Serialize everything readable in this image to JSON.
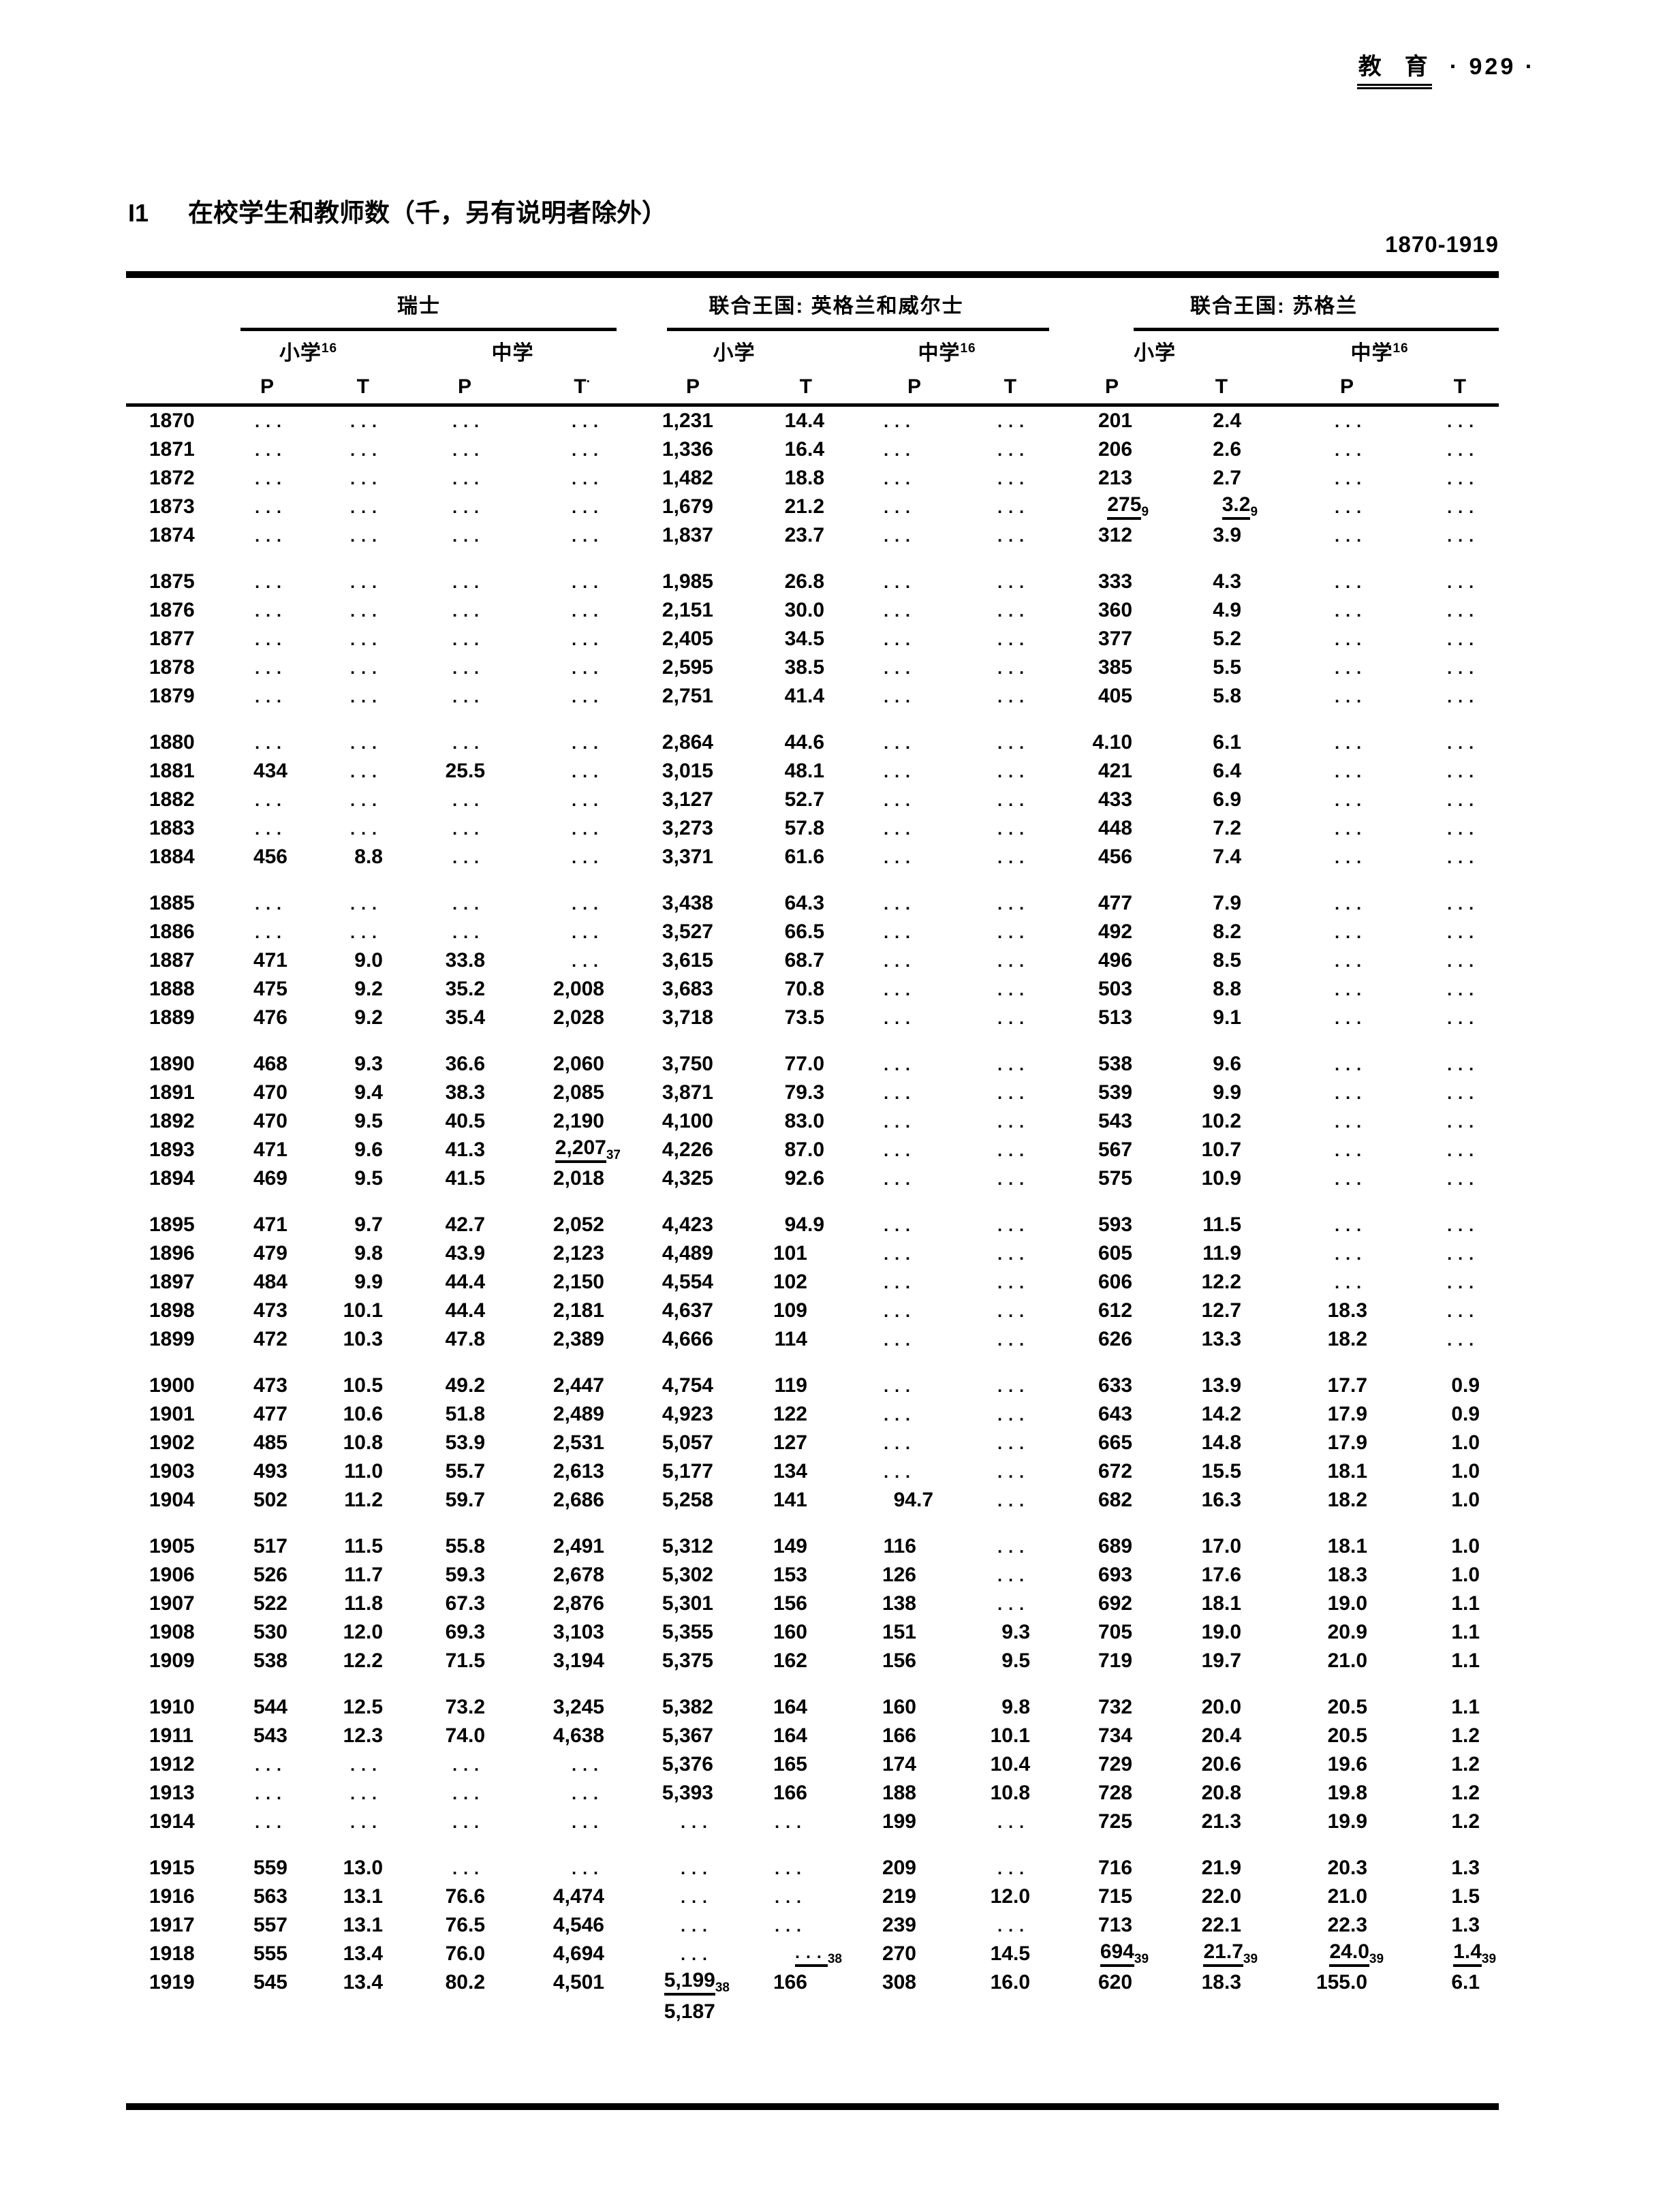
{
  "document": {
    "category": "教　育",
    "page_number": "· 929 ·",
    "table_id": "I1",
    "title": "在校学生和教师数（千，另有说明者除外）",
    "period": "1870-1919"
  },
  "table": {
    "groups": [
      {
        "label": "瑞士"
      },
      {
        "label": "联合王国: 英格兰和威尔士"
      },
      {
        "label": "联合王国: 苏格兰"
      }
    ],
    "subheaders": [
      {
        "label": "小学",
        "sup": "16"
      },
      {
        "label": "中学",
        "sup": ""
      },
      {
        "label": "小学",
        "sup": ""
      },
      {
        "label": "中学",
        "sup": "16"
      },
      {
        "label": "小学",
        "sup": ""
      },
      {
        "label": "中学",
        "sup": "16"
      }
    ],
    "pt_headers": [
      {
        "label": "P",
        "sup": ""
      },
      {
        "label": "T",
        "sup": ""
      },
      {
        "label": "P",
        "sup": ""
      },
      {
        "label": "T",
        "sup": "·"
      },
      {
        "label": "P",
        "sup": ""
      },
      {
        "label": "T",
        "sup": ""
      },
      {
        "label": "P",
        "sup": ""
      },
      {
        "label": "T",
        "sup": ""
      },
      {
        "label": "P",
        "sup": ""
      },
      {
        "label": "T",
        "sup": ""
      },
      {
        "label": "P",
        "sup": ""
      },
      {
        "label": "T",
        "sup": ""
      }
    ],
    "blocks": [
      [
        {
          "year": "1870",
          "cells": [
            "...",
            "...",
            "...",
            "...",
            "1,231",
            "14.4",
            "...",
            "...",
            "201",
            "2.4",
            "...",
            "..."
          ]
        },
        {
          "year": "1871",
          "cells": [
            "...",
            "...",
            "...",
            "...",
            "1,336",
            "16.4",
            "...",
            "...",
            "206",
            "2.6",
            "...",
            "..."
          ]
        },
        {
          "year": "1872",
          "cells": [
            "...",
            "...",
            "...",
            "...",
            "1,482",
            "18.8",
            "...",
            "...",
            "213",
            "2.7",
            "...",
            "..."
          ]
        },
        {
          "year": "1873",
          "cells": [
            "...",
            "...",
            "...",
            "...",
            "1,679",
            "21.2",
            "...",
            "...",
            {
              "v": "275",
              "sub": "9",
              "u": true
            },
            {
              "v": "3.2",
              "sub": "9",
              "u": true
            },
            "...",
            "..."
          ]
        },
        {
          "year": "1874",
          "cells": [
            "...",
            "...",
            "...",
            "...",
            "1,837",
            "23.7",
            "...",
            "...",
            "312",
            "3.9",
            "...",
            "..."
          ]
        }
      ],
      [
        {
          "year": "1875",
          "cells": [
            "...",
            "...",
            "...",
            "...",
            "1,985",
            "26.8",
            "...",
            "...",
            "333",
            "4.3",
            "...",
            "..."
          ]
        },
        {
          "year": "1876",
          "cells": [
            "...",
            "...",
            "...",
            "...",
            "2,151",
            "30.0",
            "...",
            "...",
            "360",
            "4.9",
            "...",
            "..."
          ]
        },
        {
          "year": "1877",
          "cells": [
            "...",
            "...",
            "...",
            "...",
            "2,405",
            "34.5",
            "...",
            "...",
            "377",
            "5.2",
            "...",
            "..."
          ]
        },
        {
          "year": "1878",
          "cells": [
            "...",
            "...",
            "...",
            "...",
            "2,595",
            "38.5",
            "...",
            "...",
            "385",
            "5.5",
            "...",
            "..."
          ]
        },
        {
          "year": "1879",
          "cells": [
            "...",
            "...",
            "...",
            "...",
            "2,751",
            "41.4",
            "...",
            "...",
            "405",
            "5.8",
            "...",
            "..."
          ]
        }
      ],
      [
        {
          "year": "1880",
          "cells": [
            "...",
            "...",
            "...",
            "...",
            "2,864",
            "44.6",
            "...",
            "...",
            "4.10",
            "6.1",
            "...",
            "..."
          ]
        },
        {
          "year": "1881",
          "cells": [
            "434",
            "...",
            "25.5",
            "...",
            "3,015",
            "48.1",
            "...",
            "...",
            "421",
            "6.4",
            "...",
            "..."
          ]
        },
        {
          "year": "1882",
          "cells": [
            "...",
            "...",
            "...",
            "...",
            "3,127",
            "52.7",
            "...",
            "...",
            "433",
            "6.9",
            "...",
            "..."
          ]
        },
        {
          "year": "1883",
          "cells": [
            "...",
            "...",
            "...",
            "...",
            "3,273",
            "57.8",
            "...",
            "...",
            "448",
            "7.2",
            "...",
            "..."
          ]
        },
        {
          "year": "1884",
          "cells": [
            "456",
            "8.8",
            "...",
            "...",
            "3,371",
            "61.6",
            "...",
            "...",
            "456",
            "7.4",
            "...",
            "..."
          ]
        }
      ],
      [
        {
          "year": "1885",
          "cells": [
            "...",
            "...",
            "...",
            "...",
            "3,438",
            "64.3",
            "...",
            "...",
            "477",
            "7.9",
            "...",
            "..."
          ]
        },
        {
          "year": "1886",
          "cells": [
            "...",
            "...",
            "...",
            "...",
            "3,527",
            "66.5",
            "...",
            "...",
            "492",
            "8.2",
            "...",
            "..."
          ]
        },
        {
          "year": "1887",
          "cells": [
            "471",
            "9.0",
            "33.8",
            "...",
            "3,615",
            "68.7",
            "...",
            "...",
            "496",
            "8.5",
            "...",
            "..."
          ]
        },
        {
          "year": "1888",
          "cells": [
            "475",
            "9.2",
            "35.2",
            "2,008",
            "3,683",
            "70.8",
            "...",
            "...",
            "503",
            "8.8",
            "...",
            "..."
          ]
        },
        {
          "year": "1889",
          "cells": [
            "476",
            "9.2",
            "35.4",
            "2,028",
            "3,718",
            "73.5",
            "...",
            "...",
            "513",
            "9.1",
            "...",
            "..."
          ]
        }
      ],
      [
        {
          "year": "1890",
          "cells": [
            "468",
            "9.3",
            "36.6",
            "2,060",
            "3,750",
            "77.0",
            "...",
            "...",
            "538",
            "9.6",
            "...",
            "..."
          ]
        },
        {
          "year": "1891",
          "cells": [
            "470",
            "9.4",
            "38.3",
            "2,085",
            "3,871",
            "79.3",
            "...",
            "...",
            "539",
            "9.9",
            "...",
            "..."
          ]
        },
        {
          "year": "1892",
          "cells": [
            "470",
            "9.5",
            "40.5",
            "2,190",
            "4,100",
            "83.0",
            "...",
            "...",
            "543",
            "10.2",
            "...",
            "..."
          ]
        },
        {
          "year": "1893",
          "cells": [
            "471",
            "9.6",
            "41.3",
            {
              "v": "2,207",
              "sub": "37",
              "u": true
            },
            "4,226",
            "87.0",
            "...",
            "...",
            "567",
            "10.7",
            "...",
            "..."
          ]
        },
        {
          "year": "1894",
          "cells": [
            "469",
            "9.5",
            "41.5",
            "2,018",
            "4,325",
            "92.6",
            "...",
            "...",
            "575",
            "10.9",
            "...",
            "..."
          ]
        }
      ],
      [
        {
          "year": "1895",
          "cells": [
            "471",
            "9.7",
            "42.7",
            "2,052",
            "4,423",
            "94.9",
            "...",
            "...",
            "593",
            "11.5",
            "...",
            "..."
          ]
        },
        {
          "year": "1896",
          "cells": [
            "479",
            "9.8",
            "43.9",
            "2,123",
            "4,489",
            "101",
            "...",
            "...",
            "605",
            "11.9",
            "...",
            "..."
          ]
        },
        {
          "year": "1897",
          "cells": [
            "484",
            "9.9",
            "44.4",
            "2,150",
            "4,554",
            "102",
            "...",
            "...",
            "606",
            "12.2",
            "...",
            "..."
          ]
        },
        {
          "year": "1898",
          "cells": [
            "473",
            "10.1",
            "44.4",
            "2,181",
            "4,637",
            "109",
            "...",
            "...",
            "612",
            "12.7",
            "18.3",
            "..."
          ]
        },
        {
          "year": "1899",
          "cells": [
            "472",
            "10.3",
            "47.8",
            "2,389",
            "4,666",
            "114",
            "...",
            "...",
            "626",
            "13.3",
            "18.2",
            "..."
          ]
        }
      ],
      [
        {
          "year": "1900",
          "cells": [
            "473",
            "10.5",
            "49.2",
            "2,447",
            "4,754",
            "119",
            "...",
            "...",
            "633",
            "13.9",
            "17.7",
            "0.9"
          ]
        },
        {
          "year": "1901",
          "cells": [
            "477",
            "10.6",
            "51.8",
            "2,489",
            "4,923",
            "122",
            "...",
            "...",
            "643",
            "14.2",
            "17.9",
            "0.9"
          ]
        },
        {
          "year": "1902",
          "cells": [
            "485",
            "10.8",
            "53.9",
            "2,531",
            "5,057",
            "127",
            "...",
            "...",
            "665",
            "14.8",
            "17.9",
            "1.0"
          ]
        },
        {
          "year": "1903",
          "cells": [
            "493",
            "11.0",
            "55.7",
            "2,613",
            "5,177",
            "134",
            "...",
            "...",
            "672",
            "15.5",
            "18.1",
            "1.0"
          ]
        },
        {
          "year": "1904",
          "cells": [
            "502",
            "11.2",
            "59.7",
            "2,686",
            "5,258",
            "141",
            "94.7",
            "...",
            "682",
            "16.3",
            "18.2",
            "1.0"
          ]
        }
      ],
      [
        {
          "year": "1905",
          "cells": [
            "517",
            "11.5",
            "55.8",
            "2,491",
            "5,312",
            "149",
            "116",
            "...",
            "689",
            "17.0",
            "18.1",
            "1.0"
          ]
        },
        {
          "year": "1906",
          "cells": [
            "526",
            "11.7",
            "59.3",
            "2,678",
            "5,302",
            "153",
            "126",
            "...",
            "693",
            "17.6",
            "18.3",
            "1.0"
          ]
        },
        {
          "year": "1907",
          "cells": [
            "522",
            "11.8",
            "67.3",
            "2,876",
            "5,301",
            "156",
            "138",
            "...",
            "692",
            "18.1",
            "19.0",
            "1.1"
          ]
        },
        {
          "year": "1908",
          "cells": [
            "530",
            "12.0",
            "69.3",
            "3,103",
            "5,355",
            "160",
            "151",
            "9.3",
            "705",
            "19.0",
            "20.9",
            "1.1"
          ]
        },
        {
          "year": "1909",
          "cells": [
            "538",
            "12.2",
            "71.5",
            "3,194",
            "5,375",
            "162",
            "156",
            "9.5",
            "719",
            "19.7",
            "21.0",
            "1.1"
          ]
        }
      ],
      [
        {
          "year": "1910",
          "cells": [
            "544",
            "12.5",
            "73.2",
            "3,245",
            "5,382",
            "164",
            "160",
            "9.8",
            "732",
            "20.0",
            "20.5",
            "1.1"
          ]
        },
        {
          "year": "1911",
          "cells": [
            "543",
            "12.3",
            "74.0",
            "4,638",
            "5,367",
            "164",
            "166",
            "10.1",
            "734",
            "20.4",
            "20.5",
            "1.2"
          ]
        },
        {
          "year": "1912",
          "cells": [
            "...",
            "...",
            "...",
            "...",
            "5,376",
            "165",
            "174",
            "10.4",
            "729",
            "20.6",
            "19.6",
            "1.2"
          ]
        },
        {
          "year": "1913",
          "cells": [
            "...",
            "...",
            "...",
            "...",
            "5,393",
            "166",
            "188",
            "10.8",
            "728",
            "20.8",
            "19.8",
            "1.2"
          ]
        },
        {
          "year": "1914",
          "cells": [
            "...",
            "...",
            "...",
            "...",
            "...",
            "...",
            "199",
            "...",
            "725",
            "21.3",
            "19.9",
            "1.2"
          ]
        }
      ],
      [
        {
          "year": "1915",
          "cells": [
            "559",
            "13.0",
            "...",
            "...",
            "...",
            "...",
            "209",
            "...",
            "716",
            "21.9",
            "20.3",
            "1.3"
          ]
        },
        {
          "year": "1916",
          "cells": [
            "563",
            "13.1",
            "76.6",
            "4,474",
            "...",
            "...",
            "219",
            "12.0",
            "715",
            "22.0",
            "21.0",
            "1.5"
          ]
        },
        {
          "year": "1917",
          "cells": [
            "557",
            "13.1",
            "76.5",
            "4,546",
            "...",
            "...",
            "239",
            "...",
            "713",
            "22.1",
            "22.3",
            "1.3"
          ]
        },
        {
          "year": "1918",
          "cells": [
            "555",
            "13.4",
            "76.0",
            "4,694",
            "...",
            {
              "dots": true,
              "sub": "38",
              "u": true
            },
            "270",
            "14.5",
            {
              "v": "694",
              "sub": "39",
              "u": true
            },
            {
              "v": "21.7",
              "sub": "39",
              "u": true
            },
            {
              "v": "24.0",
              "sub": "39",
              "u": true
            },
            {
              "v": "1.4",
              "sub": "39",
              "u": true
            }
          ]
        },
        {
          "year": "1919",
          "cells": [
            "545",
            "13.4",
            "80.2",
            "4,501",
            {
              "v": "5,199",
              "sub": "38",
              "u": true,
              "below": "5,187"
            },
            "166",
            "308",
            "16.0",
            "620",
            "18.3",
            "155.0",
            "6.1"
          ]
        }
      ]
    ]
  }
}
